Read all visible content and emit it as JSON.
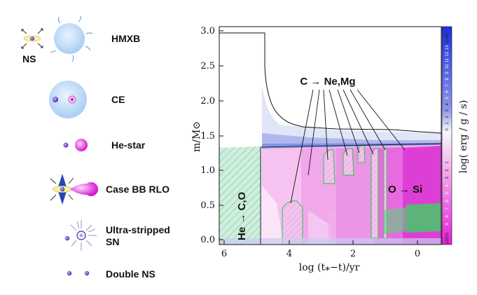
{
  "legend": {
    "items": [
      {
        "label": "HMXB",
        "icon": "hmxb-icon"
      },
      {
        "label": "CE",
        "icon": "common-envelope-icon"
      },
      {
        "label": "He-star",
        "icon": "he-star-icon"
      },
      {
        "label": "Case BB RLO",
        "icon": "case-bb-rlo-icon"
      },
      {
        "label_line1": "Ultra-stripped",
        "label_line2": "SN",
        "icon": "ultra-stripped-sn-icon"
      },
      {
        "label": "Double NS",
        "icon": "double-ns-icon"
      }
    ],
    "ns_label": "NS"
  },
  "plot": {
    "xlabel": "log (t⁎−t)/yr",
    "ylabel": "m/M⊙",
    "xticks": [
      "6",
      "4",
      "2",
      "0"
    ],
    "yticks": [
      "0.0",
      "0.5",
      "1.0",
      "1.5",
      "2.0",
      "2.5",
      "3.0"
    ],
    "annotations": {
      "burning_c": "C → Ne,Mg",
      "burning_o": "O → Si",
      "burning_he": "He → C,O"
    },
    "colorbar": {
      "label": "log( erg / g / s)",
      "gain": "GAIN",
      "loss": "LOSS",
      "upper_ticks": [
        "13",
        "12",
        "11",
        "10",
        "9",
        "8",
        "7",
        "6",
        "5",
        "4",
        "3",
        "2",
        "1",
        "0"
      ],
      "lower_ticks": [
        "1",
        "2",
        "3",
        "4",
        "5",
        "6",
        "7",
        "8",
        "9"
      ],
      "colors": {
        "gain": "#2b3fd6",
        "loss": "#e63bd8"
      }
    }
  }
}
